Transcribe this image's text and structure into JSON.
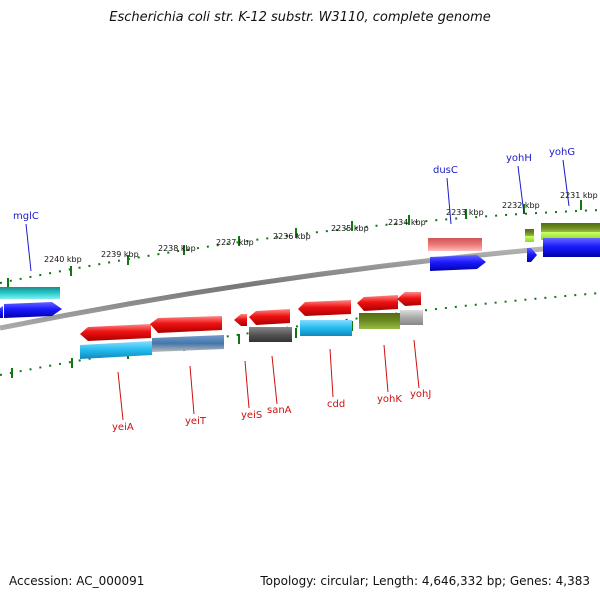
{
  "title": "Escherichia coli str. K-12 substr. W3110, complete genome",
  "footer": {
    "accession": "Accession: AC_000091",
    "topology": "Topology: circular; Length: 4,646,332 bp; Genes: 4,383"
  },
  "scale": {
    "ticks": [
      "2240 kbp",
      "2239 kbp",
      "2238 kbp",
      "2237 kbp",
      "2236 kbp",
      "2235 kbp",
      "2234 kbp",
      "2233 kbp",
      "2232 kbp",
      "2231 kbp"
    ]
  },
  "genes_top": [
    "mglC",
    "dusC",
    "yohH",
    "yohG"
  ],
  "genes_bottom": [
    "yeiA",
    "yeiT",
    "yeiS",
    "sanA",
    "cdd",
    "yohK",
    "yohJ"
  ],
  "colors": {
    "gene_red": "#ee1111",
    "gene_blue": "#1a1aff",
    "cyan": "#22bbee",
    "teal": "#22cccc",
    "pink": "#ee7777",
    "olive": "#6b8a22",
    "lime": "#aaee44",
    "gray": "#aaaaaa",
    "darkgray": "#555555",
    "tick_green": "#117711",
    "backbone": "#888888",
    "label_blue": "#1a1acc",
    "label_red": "#cc1010"
  }
}
